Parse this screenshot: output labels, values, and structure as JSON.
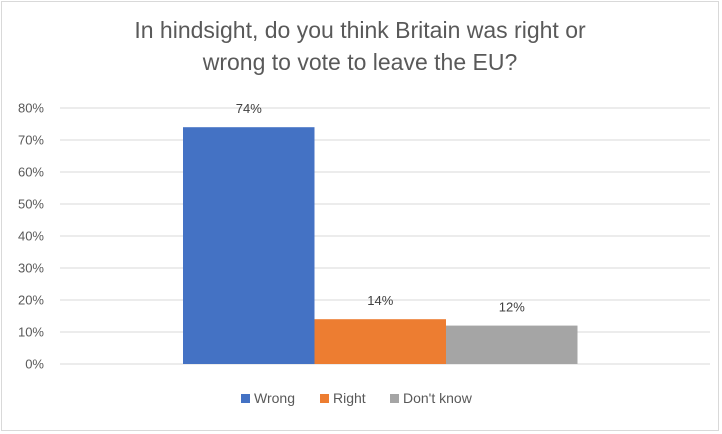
{
  "chart_data": {
    "type": "bar",
    "title_line1": "In hindsight, do you think Britain was right or",
    "title_line2": "wrong to vote to leave the EU?",
    "series": [
      {
        "name": "Wrong",
        "value": 74,
        "label": "74%",
        "color": "#4472c4"
      },
      {
        "name": "Right",
        "value": 14,
        "label": "14%",
        "color": "#ed7d31"
      },
      {
        "name": "Don't know",
        "value": 12,
        "label": "12%",
        "color": "#a5a5a5"
      }
    ],
    "y_ticks": [
      "0%",
      "10%",
      "20%",
      "30%",
      "40%",
      "50%",
      "60%",
      "70%",
      "80%"
    ],
    "ylim": [
      0,
      80
    ],
    "gridlines": true,
    "legend_position": "bottom"
  }
}
